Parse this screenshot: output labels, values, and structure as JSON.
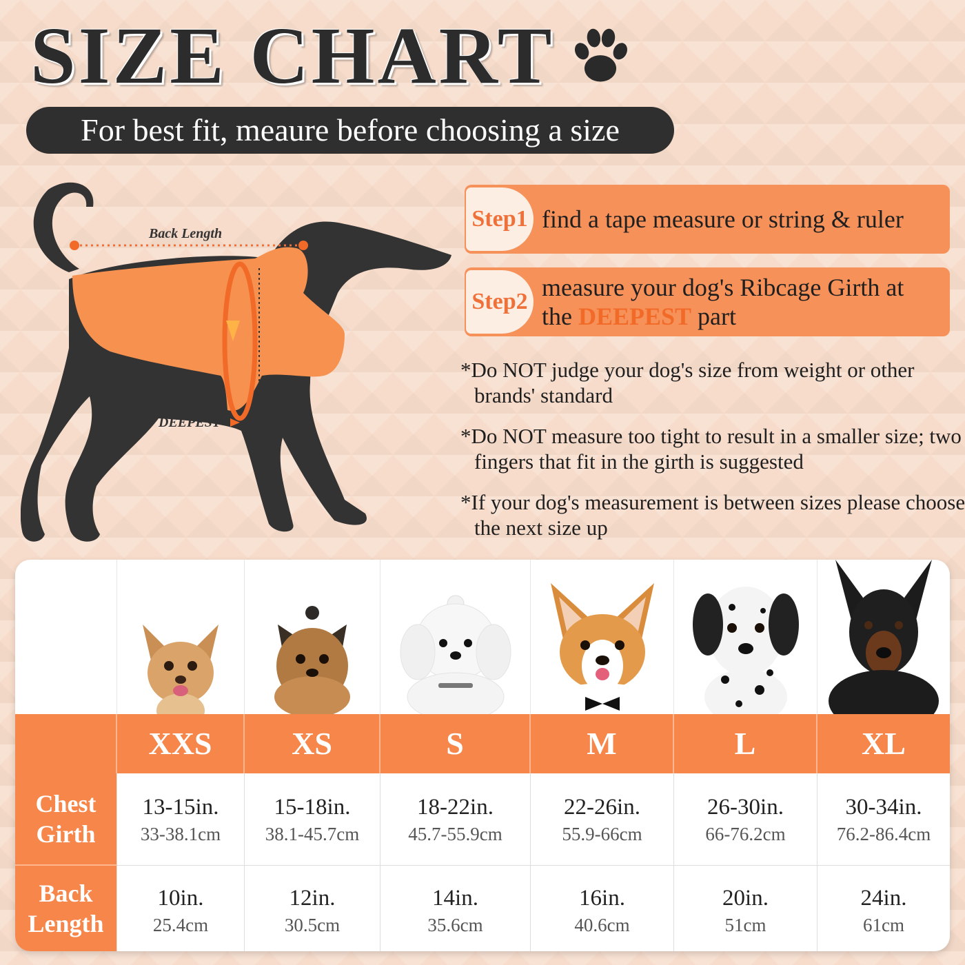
{
  "header": {
    "title": "SIZE CHART",
    "subtitle": "For best fit, meaure before choosing a size"
  },
  "illustration": {
    "back_length_label": "Back Length",
    "deepest_label": "DEEPEST"
  },
  "steps": [
    {
      "badge": "Step1",
      "text": "find a tape measure or string & ruler"
    },
    {
      "badge": "Step2",
      "text_before": "measure your dog's Ribcage Girth at the ",
      "highlight": "DEEPEST",
      "text_after": " part"
    }
  ],
  "notes": [
    "*Do NOT judge your dog's size from weight or other brands' standard",
    "*Do NOT measure too tight to result in a smaller size; two fingers that fit in the girth is suggested",
    "*If your dog's measurement is between sizes please choose the next size up"
  ],
  "table": {
    "sizes": [
      "XXS",
      "XS",
      "S",
      "M",
      "L",
      "XL"
    ],
    "chest_label": [
      "Chest",
      "Girth"
    ],
    "back_label": [
      "Back",
      "Length"
    ],
    "chest_in": [
      "13-15in.",
      "15-18in.",
      "18-22in.",
      "22-26in.",
      "26-30in.",
      "30-34in."
    ],
    "chest_cm": [
      "33-38.1cm",
      "38.1-45.7cm",
      "45.7-55.9cm",
      "55.9-66cm",
      "66-76.2cm",
      "76.2-86.4cm"
    ],
    "back_in": [
      "10in.",
      "12in.",
      "14in.",
      "16in.",
      "20in.",
      "24in."
    ],
    "back_cm": [
      "25.4cm",
      "30.5cm",
      "35.6cm",
      "40.6cm",
      "51cm",
      "61cm"
    ]
  },
  "colors": {
    "accent": "#f6864a",
    "highlight": "#f26a28",
    "dark": "#2f2f2f"
  }
}
